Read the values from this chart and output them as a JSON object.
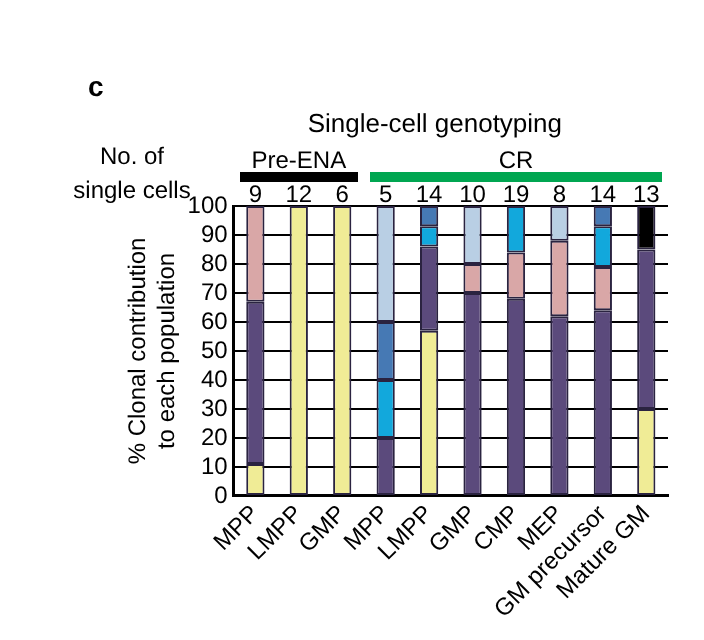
{
  "chart_data": {
    "type": "bar",
    "stacked": true,
    "title": "Single-cell genotyping",
    "ylabel": "% Clonal contribution to each population",
    "categories": [
      "MPP",
      "LMPP",
      "GMP",
      "MPP",
      "LMPP",
      "GMP",
      "CMP",
      "MEP",
      "GM precursor",
      "Mature GM"
    ],
    "series": [
      {
        "color": "#f0ec96",
        "values": [
          11,
          100,
          100,
          0,
          57,
          0,
          0,
          0,
          0,
          30
        ]
      },
      {
        "color": "#5b4a7c",
        "values": [
          56,
          0,
          0,
          20,
          29,
          70,
          68,
          62,
          64,
          55
        ]
      },
      {
        "color": "#d9a7a7",
        "values": [
          33,
          0,
          0,
          0,
          0,
          10,
          16,
          26,
          15,
          0
        ]
      },
      {
        "color": "#12a8dc",
        "values": [
          0,
          0,
          0,
          20,
          7,
          0,
          16,
          0,
          14,
          0
        ]
      },
      {
        "color": "#4679b4",
        "values": [
          0,
          0,
          0,
          20,
          7,
          0,
          0,
          0,
          7,
          0
        ]
      },
      {
        "color": "#b9cfe4",
        "values": [
          0,
          0,
          0,
          40,
          0,
          20,
          0,
          12,
          0,
          0
        ]
      },
      {
        "color": "#000000",
        "values": [
          0,
          0,
          0,
          0,
          0,
          0,
          0,
          0,
          0,
          15
        ]
      }
    ],
    "ylim": [
      0,
      100
    ],
    "yticks": [
      0,
      10,
      20,
      30,
      40,
      50,
      60,
      70,
      80,
      90,
      100
    ],
    "grid": "y",
    "legend": false,
    "annotations": [
      "c",
      "No. of single cells",
      "Pre-ENA",
      "CR",
      "9",
      "12",
      "6",
      "5",
      "14",
      "10",
      "19",
      "8",
      "14",
      "13"
    ]
  }
}
